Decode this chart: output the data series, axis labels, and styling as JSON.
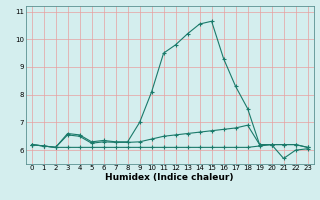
{
  "title": "",
  "xlabel": "Humidex (Indice chaleur)",
  "bg_color": "#d4eeee",
  "line_color": "#1a7a6a",
  "grid_color": "#e8a0a0",
  "xlim": [
    -0.5,
    23.5
  ],
  "ylim": [
    5.5,
    11.2
  ],
  "yticks": [
    6,
    7,
    8,
    9,
    10,
    11
  ],
  "xticks": [
    0,
    1,
    2,
    3,
    4,
    5,
    6,
    7,
    8,
    9,
    10,
    11,
    12,
    13,
    14,
    15,
    16,
    17,
    18,
    19,
    20,
    21,
    22,
    23
  ],
  "line1_x": [
    0,
    1,
    2,
    3,
    4,
    5,
    6,
    7,
    8,
    9,
    10,
    11,
    12,
    13,
    14,
    15,
    16,
    17,
    18,
    19,
    20,
    21,
    22,
    23
  ],
  "line1_y": [
    6.2,
    6.15,
    6.1,
    6.6,
    6.55,
    6.3,
    6.35,
    6.3,
    6.3,
    7.0,
    8.1,
    9.5,
    9.8,
    10.2,
    10.55,
    10.65,
    9.3,
    8.3,
    7.5,
    6.2,
    6.2,
    6.2,
    6.2,
    6.1
  ],
  "line2_x": [
    0,
    1,
    2,
    3,
    4,
    5,
    6,
    7,
    8,
    9,
    10,
    11,
    12,
    13,
    14,
    15,
    16,
    17,
    18,
    19,
    20,
    21,
    22,
    23
  ],
  "line2_y": [
    6.2,
    6.15,
    6.1,
    6.55,
    6.5,
    6.25,
    6.3,
    6.28,
    6.28,
    6.3,
    6.4,
    6.5,
    6.55,
    6.6,
    6.65,
    6.7,
    6.75,
    6.8,
    6.9,
    6.2,
    6.2,
    6.2,
    6.2,
    6.1
  ],
  "line3_x": [
    0,
    1,
    2,
    3,
    4,
    5,
    6,
    7,
    8,
    9,
    10,
    11,
    12,
    13,
    14,
    15,
    16,
    17,
    18,
    19,
    20,
    21,
    22,
    23
  ],
  "line3_y": [
    6.2,
    6.15,
    6.1,
    6.1,
    6.1,
    6.1,
    6.1,
    6.1,
    6.1,
    6.1,
    6.1,
    6.1,
    6.1,
    6.1,
    6.1,
    6.1,
    6.1,
    6.1,
    6.1,
    6.15,
    6.2,
    5.7,
    6.0,
    6.05
  ],
  "xlabel_fontsize": 6.5,
  "tick_fontsize": 5.0,
  "linewidth": 0.8,
  "markersize": 3
}
